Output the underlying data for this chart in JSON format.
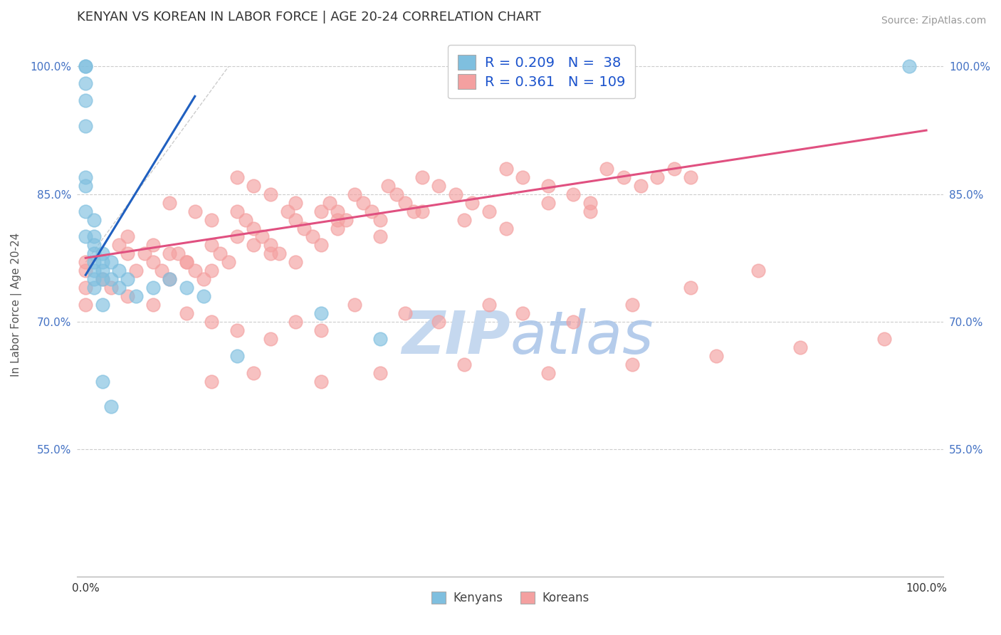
{
  "title": "KENYAN VS KOREAN IN LABOR FORCE | AGE 20-24 CORRELATION CHART",
  "source": "Source: ZipAtlas.com",
  "ylabel": "In Labor Force | Age 20-24",
  "xlim": [
    -0.01,
    1.02
  ],
  "ylim": [
    0.4,
    1.04
  ],
  "x_ticks": [
    0.0,
    1.0
  ],
  "x_tick_labels": [
    "0.0%",
    "100.0%"
  ],
  "y_ticks": [
    0.55,
    0.7,
    0.85,
    1.0
  ],
  "y_tick_labels": [
    "55.0%",
    "70.0%",
    "85.0%",
    "100.0%"
  ],
  "kenyan_R": 0.209,
  "kenyan_N": 38,
  "korean_R": 0.361,
  "korean_N": 109,
  "kenyan_color": "#7fbfdf",
  "korean_color": "#f4a0a0",
  "trend_kenyan_color": "#2060c0",
  "trend_korean_color": "#e05080",
  "watermark_zip_color": "#c5d8ef",
  "watermark_atlas_color": "#a8c4e8",
  "title_fontsize": 13,
  "label_fontsize": 11,
  "tick_fontsize": 11,
  "source_fontsize": 10,
  "kenyan_x": [
    0.0,
    0.0,
    0.0,
    0.0,
    0.0,
    0.0,
    0.0,
    0.0,
    0.0,
    0.01,
    0.01,
    0.01,
    0.01,
    0.01,
    0.01,
    0.01,
    0.01,
    0.02,
    0.02,
    0.02,
    0.02,
    0.02,
    0.03,
    0.03,
    0.04,
    0.04,
    0.05,
    0.06,
    0.08,
    0.1,
    0.12,
    0.14,
    0.18,
    0.28,
    0.35,
    0.98,
    0.02,
    0.03
  ],
  "kenyan_y": [
    1.0,
    1.0,
    0.98,
    0.96,
    0.93,
    0.87,
    0.86,
    0.83,
    0.8,
    0.82,
    0.8,
    0.79,
    0.78,
    0.77,
    0.76,
    0.75,
    0.74,
    0.78,
    0.77,
    0.76,
    0.75,
    0.72,
    0.77,
    0.75,
    0.76,
    0.74,
    0.75,
    0.73,
    0.74,
    0.75,
    0.74,
    0.73,
    0.66,
    0.71,
    0.68,
    1.0,
    0.63,
    0.6
  ],
  "korean_x": [
    0.0,
    0.0,
    0.0,
    0.0,
    0.02,
    0.03,
    0.04,
    0.05,
    0.06,
    0.07,
    0.08,
    0.09,
    0.1,
    0.11,
    0.12,
    0.13,
    0.14,
    0.15,
    0.16,
    0.17,
    0.18,
    0.19,
    0.2,
    0.21,
    0.22,
    0.23,
    0.24,
    0.25,
    0.26,
    0.27,
    0.28,
    0.29,
    0.3,
    0.31,
    0.32,
    0.33,
    0.34,
    0.35,
    0.36,
    0.37,
    0.38,
    0.39,
    0.4,
    0.42,
    0.44,
    0.46,
    0.48,
    0.5,
    0.52,
    0.55,
    0.58,
    0.6,
    0.62,
    0.64,
    0.66,
    0.68,
    0.7,
    0.72,
    0.1,
    0.13,
    0.15,
    0.18,
    0.2,
    0.22,
    0.25,
    0.28,
    0.3,
    0.05,
    0.08,
    0.1,
    0.12,
    0.15,
    0.18,
    0.2,
    0.22,
    0.25,
    0.3,
    0.35,
    0.4,
    0.45,
    0.5,
    0.55,
    0.6,
    0.05,
    0.08,
    0.12,
    0.15,
    0.18,
    0.22,
    0.25,
    0.28,
    0.32,
    0.38,
    0.42,
    0.48,
    0.52,
    0.58,
    0.65,
    0.72,
    0.8,
    0.15,
    0.2,
    0.28,
    0.35,
    0.45,
    0.55,
    0.65,
    0.75,
    0.85,
    0.95
  ],
  "korean_y": [
    0.77,
    0.76,
    0.74,
    0.72,
    0.75,
    0.74,
    0.79,
    0.78,
    0.76,
    0.78,
    0.77,
    0.76,
    0.75,
    0.78,
    0.77,
    0.76,
    0.75,
    0.79,
    0.78,
    0.77,
    0.83,
    0.82,
    0.81,
    0.8,
    0.79,
    0.78,
    0.83,
    0.82,
    0.81,
    0.8,
    0.79,
    0.84,
    0.83,
    0.82,
    0.85,
    0.84,
    0.83,
    0.82,
    0.86,
    0.85,
    0.84,
    0.83,
    0.87,
    0.86,
    0.85,
    0.84,
    0.83,
    0.88,
    0.87,
    0.86,
    0.85,
    0.84,
    0.88,
    0.87,
    0.86,
    0.87,
    0.88,
    0.87,
    0.84,
    0.83,
    0.82,
    0.87,
    0.86,
    0.85,
    0.84,
    0.83,
    0.82,
    0.8,
    0.79,
    0.78,
    0.77,
    0.76,
    0.8,
    0.79,
    0.78,
    0.77,
    0.81,
    0.8,
    0.83,
    0.82,
    0.81,
    0.84,
    0.83,
    0.73,
    0.72,
    0.71,
    0.7,
    0.69,
    0.68,
    0.7,
    0.69,
    0.72,
    0.71,
    0.7,
    0.72,
    0.71,
    0.7,
    0.72,
    0.74,
    0.76,
    0.63,
    0.64,
    0.63,
    0.64,
    0.65,
    0.64,
    0.65,
    0.66,
    0.67,
    0.68
  ],
  "kenyan_trend_x0": 0.0,
  "kenyan_trend_x1": 0.13,
  "kenyan_trend_y0": 0.755,
  "kenyan_trend_y1": 0.965,
  "korean_trend_x0": 0.0,
  "korean_trend_x1": 1.0,
  "korean_trend_y0": 0.775,
  "korean_trend_y1": 0.925
}
